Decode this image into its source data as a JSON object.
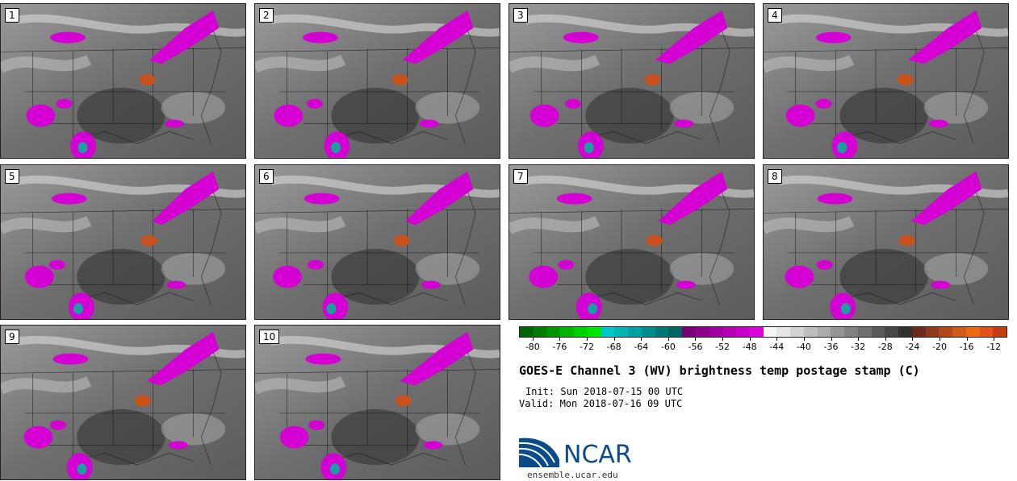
{
  "panels": [
    {
      "label": "1"
    },
    {
      "label": "2"
    },
    {
      "label": "3"
    },
    {
      "label": "4"
    },
    {
      "label": "5"
    },
    {
      "label": "6"
    },
    {
      "label": "7"
    },
    {
      "label": "8"
    },
    {
      "label": "9"
    },
    {
      "label": "10"
    }
  ],
  "colorbar": {
    "colors": [
      "#006400",
      "#007d00",
      "#009600",
      "#00b400",
      "#00d200",
      "#00e600",
      "#00c8c8",
      "#00b4b4",
      "#00a0a0",
      "#008c8c",
      "#007878",
      "#006464",
      "#7a0078",
      "#8c008c",
      "#a000a0",
      "#b400b4",
      "#c800c8",
      "#dc00dc",
      "#f5f5f5",
      "#e6e6e6",
      "#d2d2d2",
      "#bebebe",
      "#aaaaaa",
      "#969696",
      "#828282",
      "#6e6e6e",
      "#5a5a5a",
      "#464646",
      "#323232",
      "#6b2a1a",
      "#8c3a1a",
      "#b0481a",
      "#d05a1a",
      "#ea6a14",
      "#e0521a",
      "#c83c14"
    ],
    "tick_labels": [
      "-80",
      "-76",
      "-72",
      "-68",
      "-64",
      "-60",
      "-56",
      "-52",
      "-48",
      "-44",
      "-40",
      "-36",
      "-32",
      "-28",
      "-24",
      "-20",
      "-16",
      "-12"
    ]
  },
  "title": "GOES-E Channel 3 (WV) brightness temp postage stamp (C)",
  "init": "Init: Sun 2018-07-15 00 UTC",
  "valid": "Valid: Mon 2018-07-16 09 UTC",
  "logo": {
    "text": "NCAR",
    "url": "ensemble.ucar.edu"
  }
}
